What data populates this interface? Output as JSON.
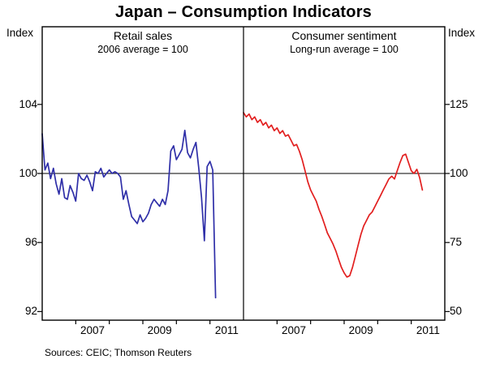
{
  "page": {
    "title": "Japan – Consumption Indicators",
    "left_axis_label": "Index",
    "right_axis_label": "Index",
    "footer": "Sources: CEIC; Thomson Reuters"
  },
  "colors": {
    "retail_sales_line": "#2f2fa8",
    "consumer_sentiment_line": "#e21f1f",
    "axis": "#000000",
    "background": "#ffffff"
  },
  "chart_data": [
    {
      "type": "line",
      "panel": "left",
      "title": "Retail sales",
      "subtitle": "2006 average = 100",
      "axis_side": "left",
      "ylabel": "Index",
      "ylim": [
        91.5,
        108.5
      ],
      "yticks": [
        92,
        96,
        100,
        104
      ],
      "xlim": [
        2006,
        2012
      ],
      "xticks": [
        2007,
        2008,
        2009,
        2010,
        2011
      ],
      "xtick_labels": [
        "2007",
        "2009",
        "2011"
      ],
      "xtick_label_positions": [
        2007.5,
        2009.5,
        2011.5
      ],
      "reference_line": 100,
      "grid": false,
      "series": [
        {
          "name": "Retail sales",
          "color": "#2f2fa8",
          "x_start": 2006.0,
          "x_step": 0.0833333,
          "frequency": "monthly",
          "values": [
            102.3,
            100.2,
            100.6,
            99.7,
            100.3,
            99.4,
            98.8,
            99.7,
            98.6,
            98.5,
            99.3,
            98.9,
            98.4,
            100.0,
            99.7,
            99.6,
            99.9,
            99.5,
            99.0,
            100.1,
            100.0,
            100.3,
            99.8,
            100.0,
            100.2,
            100.0,
            100.1,
            100.0,
            99.8,
            98.5,
            99.0,
            98.2,
            97.5,
            97.3,
            97.1,
            97.6,
            97.2,
            97.4,
            97.7,
            98.2,
            98.5,
            98.3,
            98.1,
            98.5,
            98.2,
            99.0,
            101.3,
            101.6,
            100.8,
            101.1,
            101.4,
            102.5,
            101.2,
            100.9,
            101.4,
            101.8,
            100.3,
            98.6,
            96.1,
            100.4,
            100.7,
            100.2,
            92.8
          ]
        }
      ]
    },
    {
      "type": "line",
      "panel": "right",
      "title": "Consumer sentiment",
      "subtitle": "Long-run average = 100",
      "axis_side": "right",
      "ylabel": "Index",
      "ylim": [
        46.875,
        153.125
      ],
      "yticks": [
        50,
        75,
        100,
        125
      ],
      "xlim": [
        2006,
        2012
      ],
      "xticks": [
        2007,
        2008,
        2009,
        2010,
        2011
      ],
      "xtick_labels": [
        "2007",
        "2009",
        "2011"
      ],
      "xtick_label_positions": [
        2007.5,
        2009.5,
        2011.5
      ],
      "reference_line": 100,
      "grid": false,
      "series": [
        {
          "name": "Consumer sentiment",
          "color": "#e21f1f",
          "x_start": 2006.0,
          "x_step": 0.0833333,
          "frequency": "monthly",
          "values": [
            122.0,
            120.5,
            121.5,
            119.5,
            120.5,
            118.5,
            119.5,
            117.5,
            118.5,
            116.5,
            117.5,
            115.5,
            116.5,
            114.5,
            115.5,
            113.5,
            114.0,
            112.0,
            110.0,
            110.5,
            108.0,
            105.0,
            101.0,
            97.0,
            94.0,
            92.0,
            90.0,
            87.0,
            84.5,
            81.5,
            78.5,
            76.5,
            74.5,
            72.0,
            69.0,
            66.0,
            64.0,
            62.5,
            63.0,
            66.0,
            70.0,
            74.0,
            78.0,
            81.0,
            83.0,
            85.0,
            86.0,
            88.0,
            90.0,
            92.0,
            94.0,
            96.0,
            98.0,
            99.0,
            98.0,
            101.0,
            104.0,
            106.5,
            107.0,
            104.0,
            101.0,
            100.0,
            101.5,
            98.5,
            94.0
          ]
        }
      ]
    }
  ]
}
